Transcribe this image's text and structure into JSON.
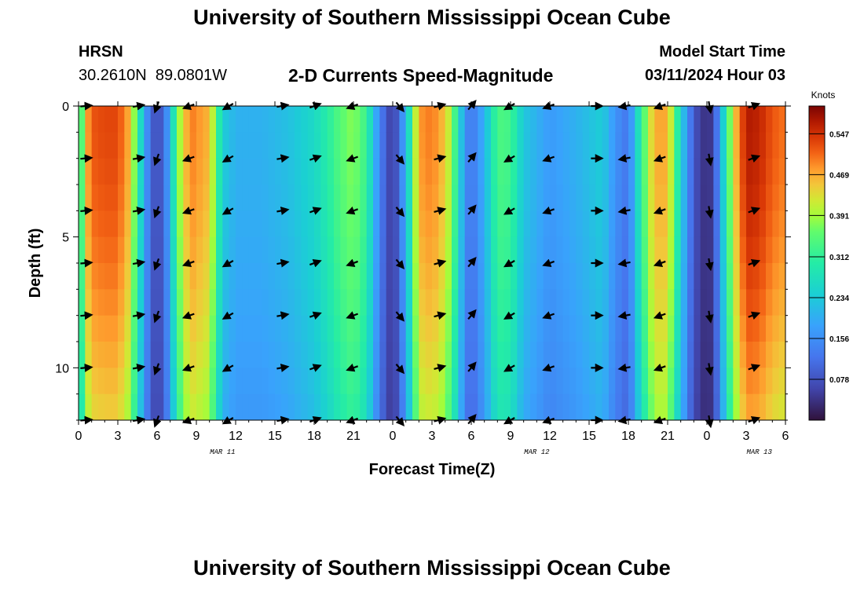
{
  "header": {
    "title": "University of Southern Mississippi Ocean Cube",
    "station_name": "HRSN",
    "station_coords": "30.2610N  89.0801W",
    "subtitle": "2-D Currents Speed-Magnitude",
    "model_start_label": "Model Start Time",
    "model_start_time": "03/11/2024 Hour 03"
  },
  "footer": {
    "title": "University of Southern Mississippi Ocean Cube"
  },
  "chart_data": {
    "type": "heatmap",
    "title": "2-D Currents Speed-Magnitude",
    "xlabel": "Forecast Time(Z)",
    "ylabel": "Depth (ft)",
    "x_ticks": [
      "0",
      "3",
      "6",
      "9",
      "12",
      "15",
      "18",
      "21",
      "0",
      "3",
      "6",
      "9",
      "12",
      "15",
      "18",
      "21",
      "0",
      "3",
      "6"
    ],
    "x_tick_hours": [
      0,
      3,
      6,
      9,
      12,
      15,
      18,
      21,
      24,
      27,
      30,
      33,
      36,
      39,
      42,
      45,
      48,
      51,
      54
    ],
    "x_range_hours": [
      0,
      54
    ],
    "date_labels": [
      {
        "label": "MAR 11",
        "hour": 11
      },
      {
        "label": "MAR 12",
        "hour": 35
      },
      {
        "label": "MAR 13",
        "hour": 52
      }
    ],
    "y_ticks": [
      "0",
      "5",
      "10"
    ],
    "y_tick_values": [
      0,
      5,
      10
    ],
    "y_range_ft": [
      0,
      12
    ],
    "colorbar": {
      "label": "Knots",
      "range": [
        0.0,
        0.6
      ],
      "ticks": [
        "0.547",
        "0.469",
        "0.391",
        "0.312",
        "0.234",
        "0.156",
        "0.078"
      ],
      "tick_values": [
        0.547,
        0.469,
        0.391,
        0.312,
        0.234,
        0.156,
        0.078
      ]
    },
    "speed_profile": {
      "hours": [
        0,
        0.5,
        1,
        2,
        3,
        3.8,
        4.5,
        5,
        5.5,
        6,
        6.5,
        7,
        7.5,
        8.5,
        10,
        11,
        12,
        14,
        16,
        18,
        19,
        20,
        21,
        22,
        23,
        24,
        25,
        26,
        27,
        28,
        28.5,
        29,
        29.5,
        30,
        31,
        32,
        33,
        34,
        35,
        36,
        38,
        40,
        41,
        42,
        43,
        44,
        45,
        46,
        47,
        48,
        48.5,
        49,
        50,
        51,
        52,
        53,
        54
      ],
      "knots": [
        0.25,
        0.45,
        0.52,
        0.53,
        0.53,
        0.47,
        0.33,
        0.19,
        0.11,
        0.06,
        0.11,
        0.2,
        0.36,
        0.5,
        0.46,
        0.24,
        0.2,
        0.2,
        0.22,
        0.26,
        0.3,
        0.35,
        0.38,
        0.32,
        0.14,
        0.04,
        0.2,
        0.48,
        0.5,
        0.45,
        0.38,
        0.28,
        0.16,
        0.12,
        0.2,
        0.34,
        0.33,
        0.23,
        0.2,
        0.17,
        0.2,
        0.24,
        0.16,
        0.12,
        0.32,
        0.47,
        0.47,
        0.25,
        0.08,
        0.03,
        0.06,
        0.18,
        0.43,
        0.57,
        0.56,
        0.52,
        0.5
      ]
    },
    "vectors": {
      "hours": [
        0.5,
        4.5,
        6,
        8.5,
        11.5,
        15.5,
        18,
        21,
        24.5,
        27.5,
        30,
        33,
        36,
        39.5,
        41.8,
        44.5,
        48.2,
        51.5
      ],
      "depths_ft": [
        0,
        2,
        4,
        6,
        8,
        10,
        12
      ],
      "directions_deg": [
        85,
        80,
        200,
        250,
        240,
        80,
        70,
        250,
        140,
        75,
        40,
        240,
        250,
        90,
        260,
        250,
        170,
        70
      ],
      "unit_length_knots": 0.3
    }
  }
}
